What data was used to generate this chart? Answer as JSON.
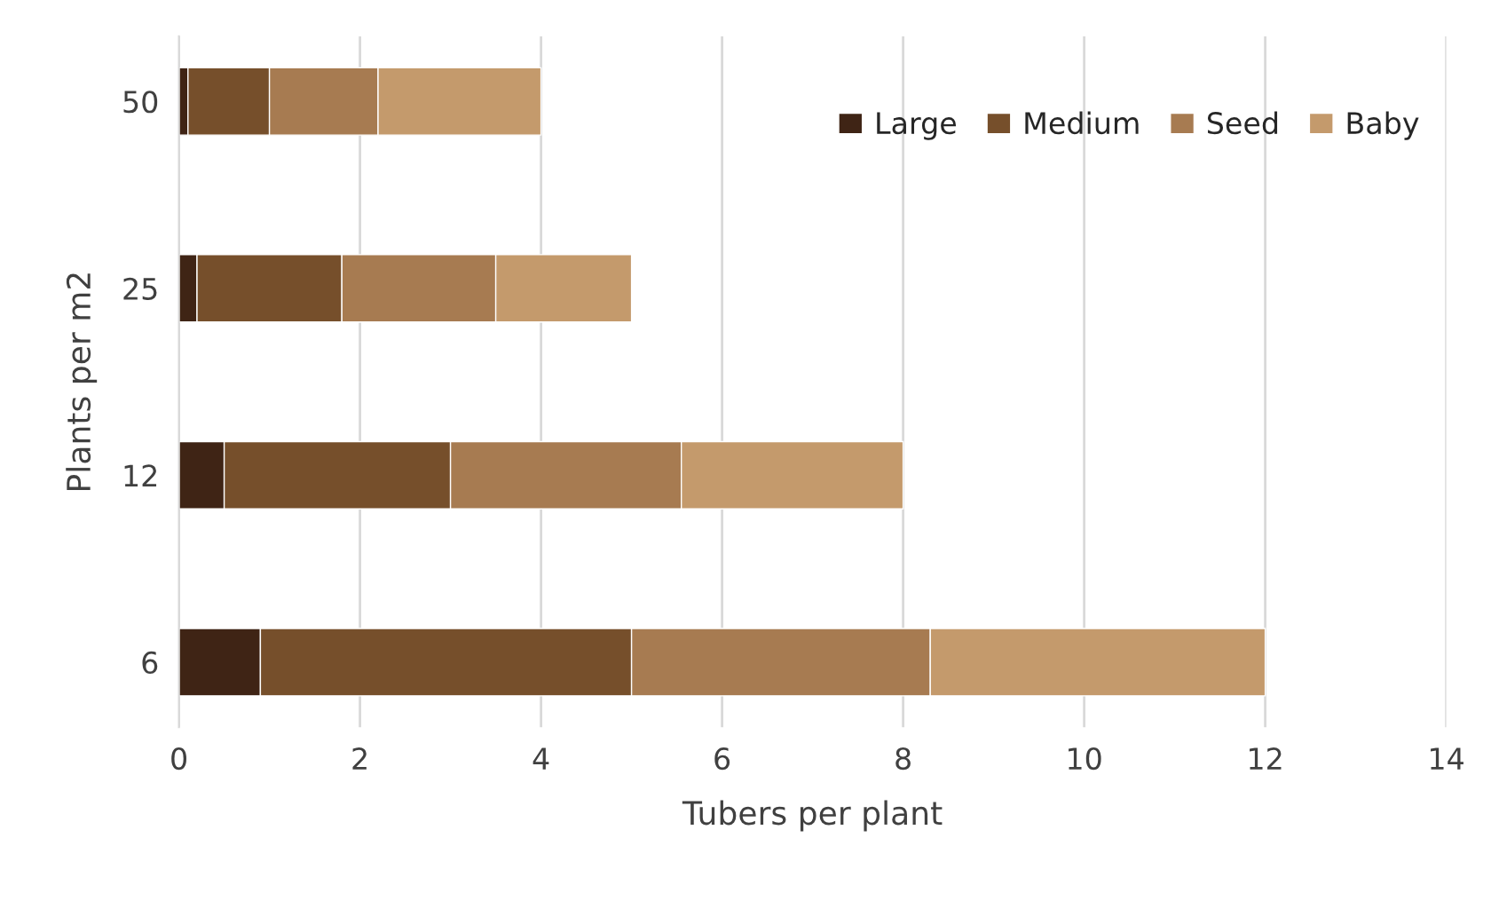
{
  "chart_data": {
    "type": "bar",
    "orientation": "horizontal",
    "stacked": true,
    "xlabel": "Tubers per plant",
    "ylabel": "Plants per m2",
    "categories": [
      "50",
      "25",
      "12",
      "6"
    ],
    "series": [
      {
        "name": "Large",
        "color": "#3f2415",
        "values": [
          0.1,
          0.2,
          0.5,
          0.9
        ]
      },
      {
        "name": "Medium",
        "color": "#764f2b",
        "values": [
          0.9,
          1.6,
          2.5,
          4.1
        ]
      },
      {
        "name": "Seed",
        "color": "#a77b51",
        "values": [
          1.2,
          1.7,
          2.55,
          3.3
        ]
      },
      {
        "name": "Baby",
        "color": "#c49a6c",
        "values": [
          1.8,
          1.5,
          2.45,
          3.7
        ]
      }
    ],
    "xlim": [
      0,
      14
    ],
    "xticks": [
      0,
      2,
      4,
      6,
      8,
      10,
      12,
      14
    ],
    "grid": "x",
    "legend": "top right"
  }
}
